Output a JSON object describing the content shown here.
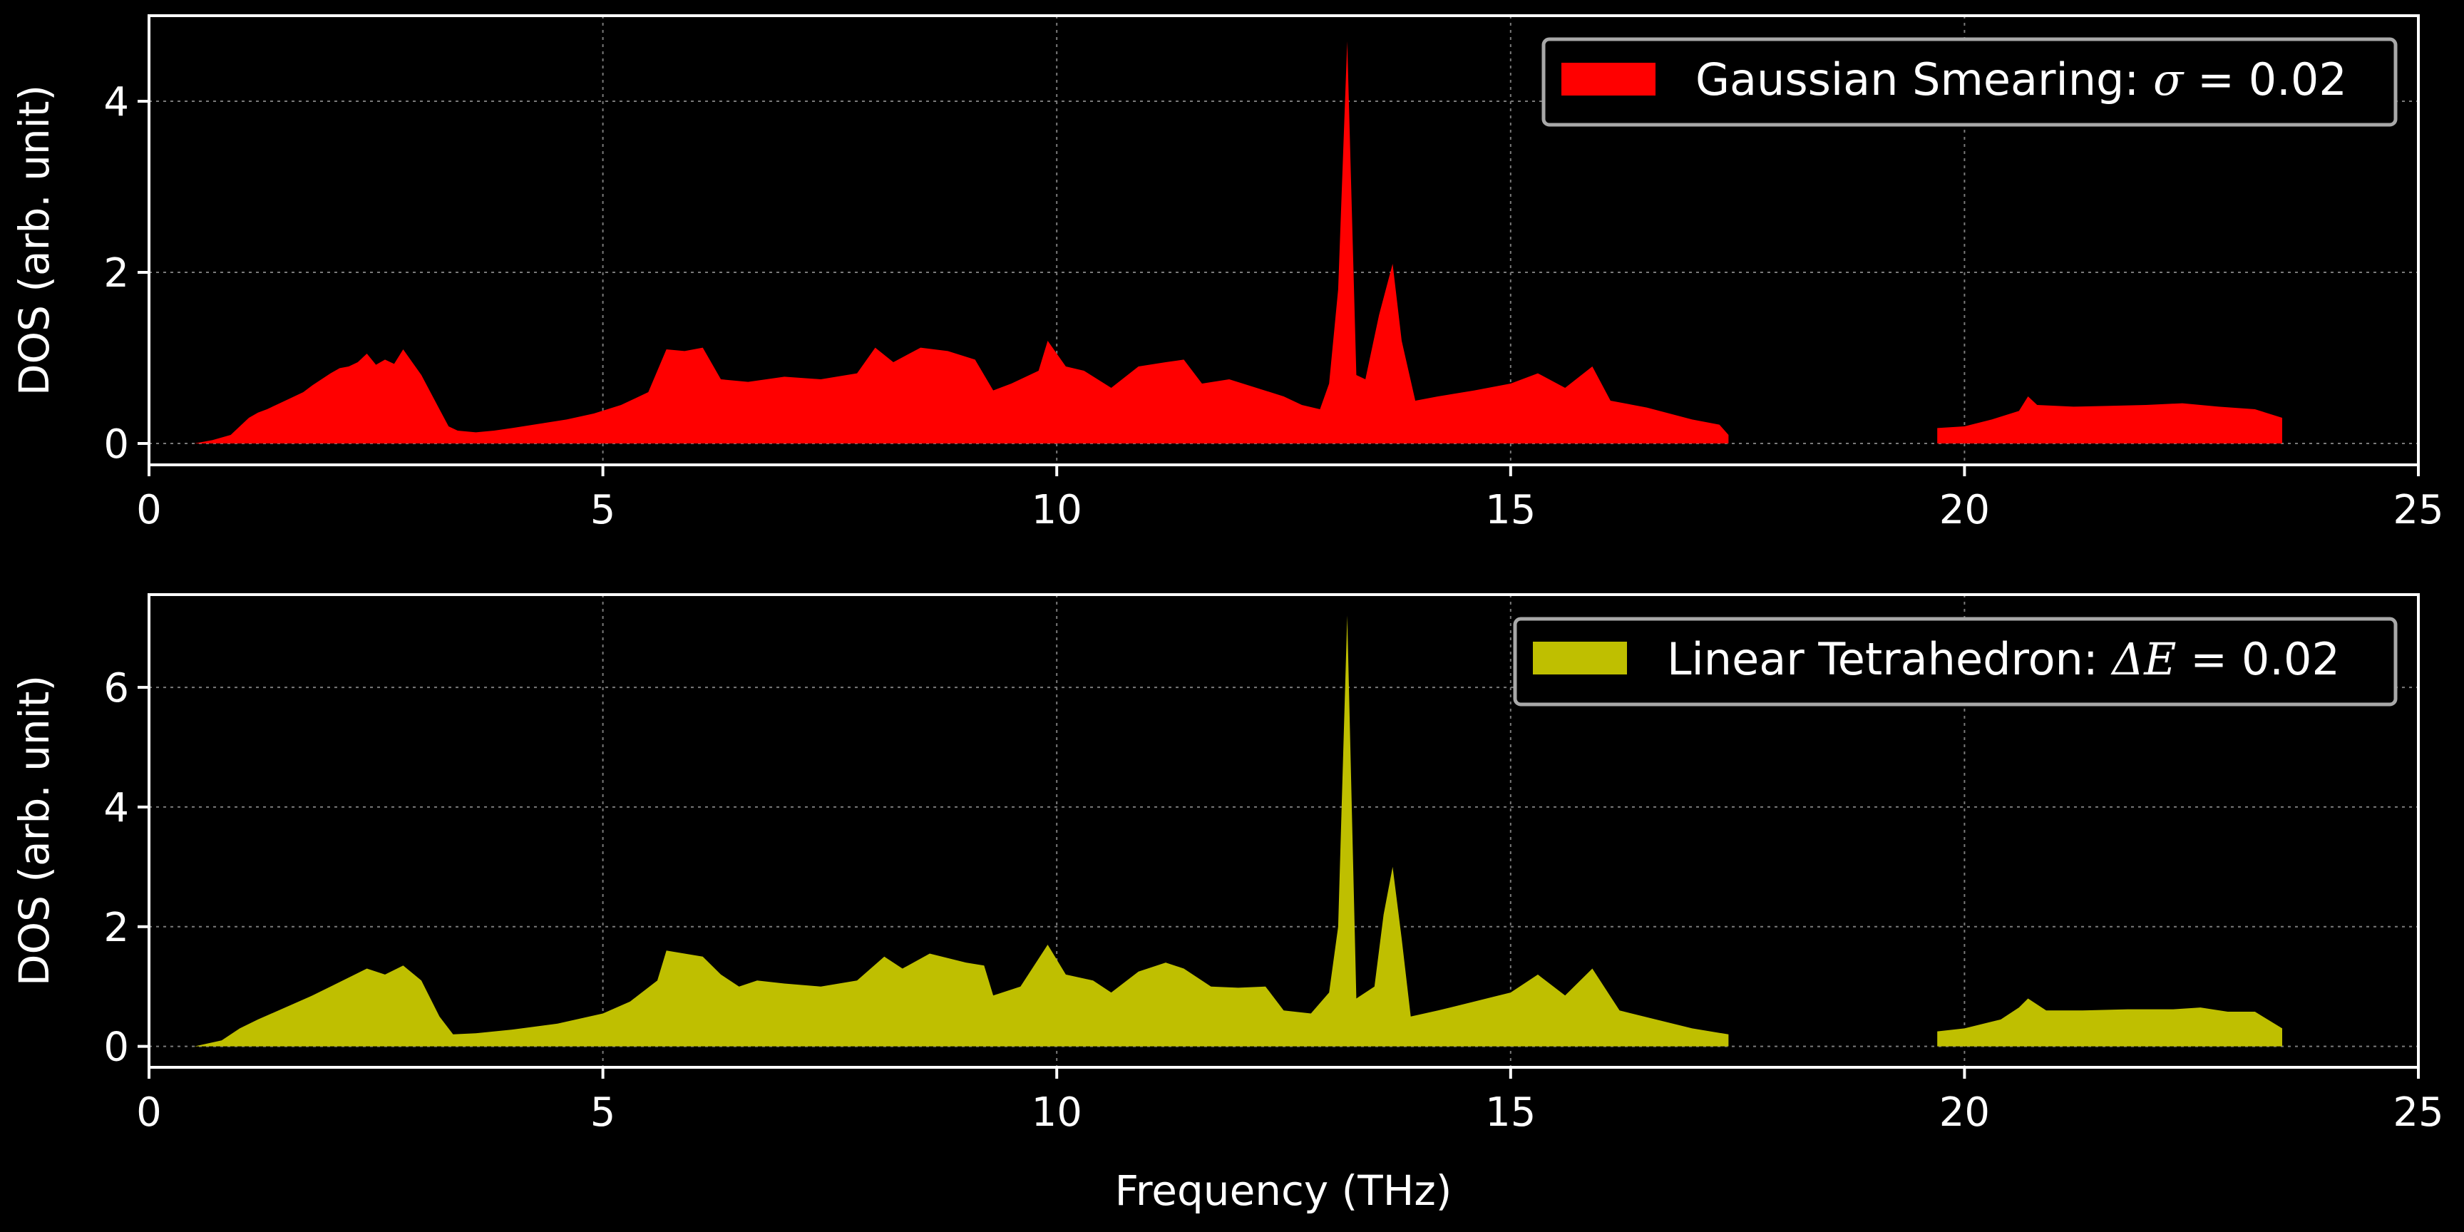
{
  "chart_data": [
    {
      "type": "area",
      "legend": {
        "symbol_text": "Gaussian Smearing: ",
        "symbol_var": "σ",
        "equals": " = ",
        "value_text": "0.02",
        "placement": "top-right"
      },
      "ylabel": "DOS (arb. unit)",
      "xlabel": "",
      "xlim": [
        0,
        25
      ],
      "ylim": [
        -0.25,
        5.0
      ],
      "xticks": [
        0,
        5,
        10,
        15,
        20,
        25
      ],
      "yticks": [
        0,
        2,
        4
      ],
      "color": "#ff0000",
      "grid": true,
      "segments": [
        [
          [
            0.5,
            0
          ],
          [
            0.6,
            0.02
          ],
          [
            0.7,
            0.04
          ],
          [
            0.8,
            0.07
          ],
          [
            0.9,
            0.1
          ],
          [
            1.0,
            0.2
          ],
          [
            1.1,
            0.3
          ],
          [
            1.2,
            0.36
          ],
          [
            1.3,
            0.4
          ],
          [
            1.4,
            0.45
          ],
          [
            1.5,
            0.5
          ],
          [
            1.6,
            0.55
          ],
          [
            1.7,
            0.6
          ],
          [
            1.8,
            0.68
          ],
          [
            1.9,
            0.75
          ],
          [
            2.0,
            0.82
          ],
          [
            2.1,
            0.88
          ],
          [
            2.2,
            0.9
          ],
          [
            2.3,
            0.95
          ],
          [
            2.4,
            1.05
          ],
          [
            2.5,
            0.92
          ],
          [
            2.6,
            0.98
          ],
          [
            2.7,
            0.93
          ],
          [
            2.8,
            1.1
          ],
          [
            2.9,
            0.95
          ],
          [
            3.0,
            0.8
          ],
          [
            3.1,
            0.6
          ],
          [
            3.2,
            0.4
          ],
          [
            3.3,
            0.2
          ],
          [
            3.4,
            0.15
          ],
          [
            3.6,
            0.13
          ],
          [
            3.8,
            0.15
          ],
          [
            4.0,
            0.18
          ],
          [
            4.3,
            0.23
          ],
          [
            4.6,
            0.28
          ],
          [
            4.9,
            0.35
          ],
          [
            5.2,
            0.45
          ],
          [
            5.5,
            0.6
          ],
          [
            5.7,
            1.1
          ],
          [
            5.9,
            1.08
          ],
          [
            6.1,
            1.12
          ],
          [
            6.3,
            0.75
          ],
          [
            6.6,
            0.72
          ],
          [
            7.0,
            0.78
          ],
          [
            7.4,
            0.75
          ],
          [
            7.8,
            0.82
          ],
          [
            8.0,
            1.12
          ],
          [
            8.2,
            0.95
          ],
          [
            8.5,
            1.12
          ],
          [
            8.8,
            1.08
          ],
          [
            9.1,
            0.98
          ],
          [
            9.3,
            0.62
          ],
          [
            9.5,
            0.7
          ],
          [
            9.8,
            0.85
          ],
          [
            9.9,
            1.2
          ],
          [
            10.1,
            0.9
          ],
          [
            10.3,
            0.85
          ],
          [
            10.6,
            0.65
          ],
          [
            10.9,
            0.9
          ],
          [
            11.2,
            0.95
          ],
          [
            11.4,
            0.98
          ],
          [
            11.6,
            0.7
          ],
          [
            11.9,
            0.75
          ],
          [
            12.2,
            0.65
          ],
          [
            12.5,
            0.55
          ],
          [
            12.7,
            0.45
          ],
          [
            12.9,
            0.4
          ],
          [
            13.0,
            0.7
          ],
          [
            13.1,
            1.8
          ],
          [
            13.2,
            4.7
          ],
          [
            13.3,
            0.8
          ],
          [
            13.4,
            0.75
          ],
          [
            13.55,
            1.5
          ],
          [
            13.7,
            2.1
          ],
          [
            13.8,
            1.2
          ],
          [
            13.95,
            0.5
          ],
          [
            14.2,
            0.55
          ],
          [
            14.6,
            0.62
          ],
          [
            15.0,
            0.7
          ],
          [
            15.3,
            0.82
          ],
          [
            15.6,
            0.65
          ],
          [
            15.9,
            0.9
          ],
          [
            16.1,
            0.5
          ],
          [
            16.5,
            0.42
          ],
          [
            17.0,
            0.28
          ],
          [
            17.3,
            0.22
          ],
          [
            17.4,
            0.1
          ],
          [
            17.4,
            0
          ]
        ],
        [
          [
            19.7,
            0
          ],
          [
            19.7,
            0.18
          ],
          [
            20.0,
            0.2
          ],
          [
            20.3,
            0.28
          ],
          [
            20.6,
            0.38
          ],
          [
            20.7,
            0.55
          ],
          [
            20.8,
            0.45
          ],
          [
            21.2,
            0.43
          ],
          [
            21.6,
            0.44
          ],
          [
            22.0,
            0.45
          ],
          [
            22.4,
            0.47
          ],
          [
            22.8,
            0.43
          ],
          [
            23.2,
            0.4
          ],
          [
            23.5,
            0.3
          ],
          [
            23.5,
            0
          ]
        ]
      ]
    },
    {
      "type": "area",
      "legend": {
        "symbol_text": "Linear Tetrahedron: ",
        "symbol_var": "ΔE",
        "equals": " = ",
        "value_text": "0.02",
        "placement": "top-right"
      },
      "ylabel": "DOS (arb. unit)",
      "xlabel": "Frequency (THz)",
      "xlim": [
        0,
        25
      ],
      "ylim": [
        -0.35,
        7.55
      ],
      "xticks": [
        0,
        5,
        10,
        15,
        20,
        25
      ],
      "yticks": [
        0,
        2,
        4,
        6
      ],
      "color": "#bfbf00",
      "grid": true,
      "segments": [
        [
          [
            0.5,
            0
          ],
          [
            0.8,
            0.1
          ],
          [
            1.0,
            0.3
          ],
          [
            1.2,
            0.45
          ],
          [
            1.5,
            0.65
          ],
          [
            1.8,
            0.85
          ],
          [
            2.0,
            1.0
          ],
          [
            2.2,
            1.15
          ],
          [
            2.4,
            1.3
          ],
          [
            2.6,
            1.2
          ],
          [
            2.8,
            1.35
          ],
          [
            3.0,
            1.1
          ],
          [
            3.2,
            0.5
          ],
          [
            3.35,
            0.2
          ],
          [
            3.6,
            0.22
          ],
          [
            4.0,
            0.28
          ],
          [
            4.5,
            0.38
          ],
          [
            5.0,
            0.55
          ],
          [
            5.3,
            0.75
          ],
          [
            5.6,
            1.1
          ],
          [
            5.7,
            1.6
          ],
          [
            5.9,
            1.55
          ],
          [
            6.1,
            1.5
          ],
          [
            6.3,
            1.2
          ],
          [
            6.5,
            1.0
          ],
          [
            6.7,
            1.1
          ],
          [
            7.0,
            1.05
          ],
          [
            7.4,
            1.0
          ],
          [
            7.8,
            1.1
          ],
          [
            8.1,
            1.5
          ],
          [
            8.3,
            1.3
          ],
          [
            8.6,
            1.55
          ],
          [
            9.0,
            1.4
          ],
          [
            9.2,
            1.35
          ],
          [
            9.3,
            0.85
          ],
          [
            9.6,
            1.0
          ],
          [
            9.9,
            1.7
          ],
          [
            10.1,
            1.2
          ],
          [
            10.4,
            1.1
          ],
          [
            10.6,
            0.9
          ],
          [
            10.9,
            1.25
          ],
          [
            11.2,
            1.4
          ],
          [
            11.4,
            1.3
          ],
          [
            11.7,
            1.0
          ],
          [
            12.0,
            0.98
          ],
          [
            12.3,
            1.0
          ],
          [
            12.5,
            0.6
          ],
          [
            12.8,
            0.55
          ],
          [
            13.0,
            0.9
          ],
          [
            13.1,
            2.0
          ],
          [
            13.2,
            7.2
          ],
          [
            13.3,
            0.8
          ],
          [
            13.5,
            1.0
          ],
          [
            13.6,
            2.2
          ],
          [
            13.7,
            3.0
          ],
          [
            13.8,
            1.8
          ],
          [
            13.9,
            0.5
          ],
          [
            14.2,
            0.6
          ],
          [
            14.6,
            0.75
          ],
          [
            15.0,
            0.9
          ],
          [
            15.3,
            1.2
          ],
          [
            15.6,
            0.85
          ],
          [
            15.9,
            1.3
          ],
          [
            16.2,
            0.6
          ],
          [
            16.6,
            0.45
          ],
          [
            17.0,
            0.3
          ],
          [
            17.4,
            0.2
          ],
          [
            17.4,
            0
          ]
        ],
        [
          [
            19.7,
            0
          ],
          [
            19.7,
            0.25
          ],
          [
            20.0,
            0.3
          ],
          [
            20.4,
            0.45
          ],
          [
            20.6,
            0.65
          ],
          [
            20.7,
            0.8
          ],
          [
            20.9,
            0.6
          ],
          [
            21.3,
            0.6
          ],
          [
            21.8,
            0.62
          ],
          [
            22.3,
            0.62
          ],
          [
            22.6,
            0.65
          ],
          [
            22.9,
            0.58
          ],
          [
            23.2,
            0.58
          ],
          [
            23.5,
            0.3
          ],
          [
            23.5,
            0
          ]
        ]
      ]
    }
  ]
}
